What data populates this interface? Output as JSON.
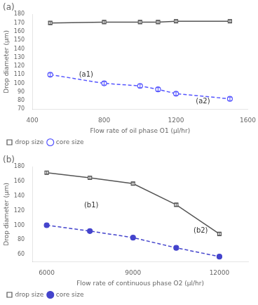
{
  "chart_data": [
    {
      "type": "line",
      "title": "(a)",
      "x_label": "Flow rate of oil phase O1 (μl/hr)",
      "y_label": "Drop diameter (μm)",
      "x": [
        500,
        800,
        1000,
        1100,
        1200,
        1500
      ],
      "series": [
        {
          "name": "drop size",
          "color": "#555555",
          "marker": "open square",
          "line_style": "solid",
          "values": [
            170,
            171,
            171,
            171,
            172,
            172
          ],
          "errors": [
            1.5,
            1.5,
            1.5,
            1.5,
            1.5,
            1.5
          ]
        },
        {
          "name": "core size",
          "color": "#5555ff",
          "marker": "open circle",
          "line_style": "dashed",
          "values": [
            110,
            100,
            97,
            93,
            88,
            82
          ],
          "errors": [
            2,
            2,
            2,
            2,
            2,
            2
          ]
        }
      ],
      "xlim": [
        400,
        1600
      ],
      "xticks": [
        400,
        800,
        1200,
        1600
      ],
      "ylim": [
        70,
        180
      ],
      "yticks": [
        70,
        80,
        90,
        100,
        110,
        120,
        130,
        140,
        150,
        160,
        170,
        180
      ],
      "grid": false,
      "legend": "lower left",
      "annotations": [
        {
          "text": "(a1)",
          "x": 660,
          "y": 108
        },
        {
          "text": "(a2)",
          "x": 1310,
          "y": 77
        }
      ]
    },
    {
      "type": "line",
      "title": "(b)",
      "x_label": "Flow rate of continuous phase O2 (μl/hr)",
      "y_label": "Drop diameter (μm)",
      "x": [
        6000,
        7500,
        9000,
        10500,
        12000
      ],
      "series": [
        {
          "name": "drop size",
          "color": "#555555",
          "marker": "open square",
          "line_style": "solid",
          "values": [
            172,
            165,
            157,
            128,
            88
          ],
          "errors": [
            2,
            2,
            2,
            2,
            2
          ]
        },
        {
          "name": "core size",
          "color": "#4444cc",
          "marker": "circle",
          "line_style": "dashed",
          "values": [
            100,
            92,
            83,
            69,
            57
          ],
          "errors": [
            2,
            2,
            2,
            2,
            2
          ]
        }
      ],
      "xlim": [
        5500,
        13000
      ],
      "xticks": [
        6000,
        9000,
        12000
      ],
      "ylim": [
        50,
        180
      ],
      "yticks": [
        60,
        80,
        100,
        120,
        140,
        160,
        180
      ],
      "grid": false,
      "legend": "lower left",
      "annotations": [
        {
          "text": "(b1)",
          "x": 7300,
          "y": 125
        },
        {
          "text": "(b2)",
          "x": 11100,
          "y": 90
        }
      ]
    }
  ]
}
